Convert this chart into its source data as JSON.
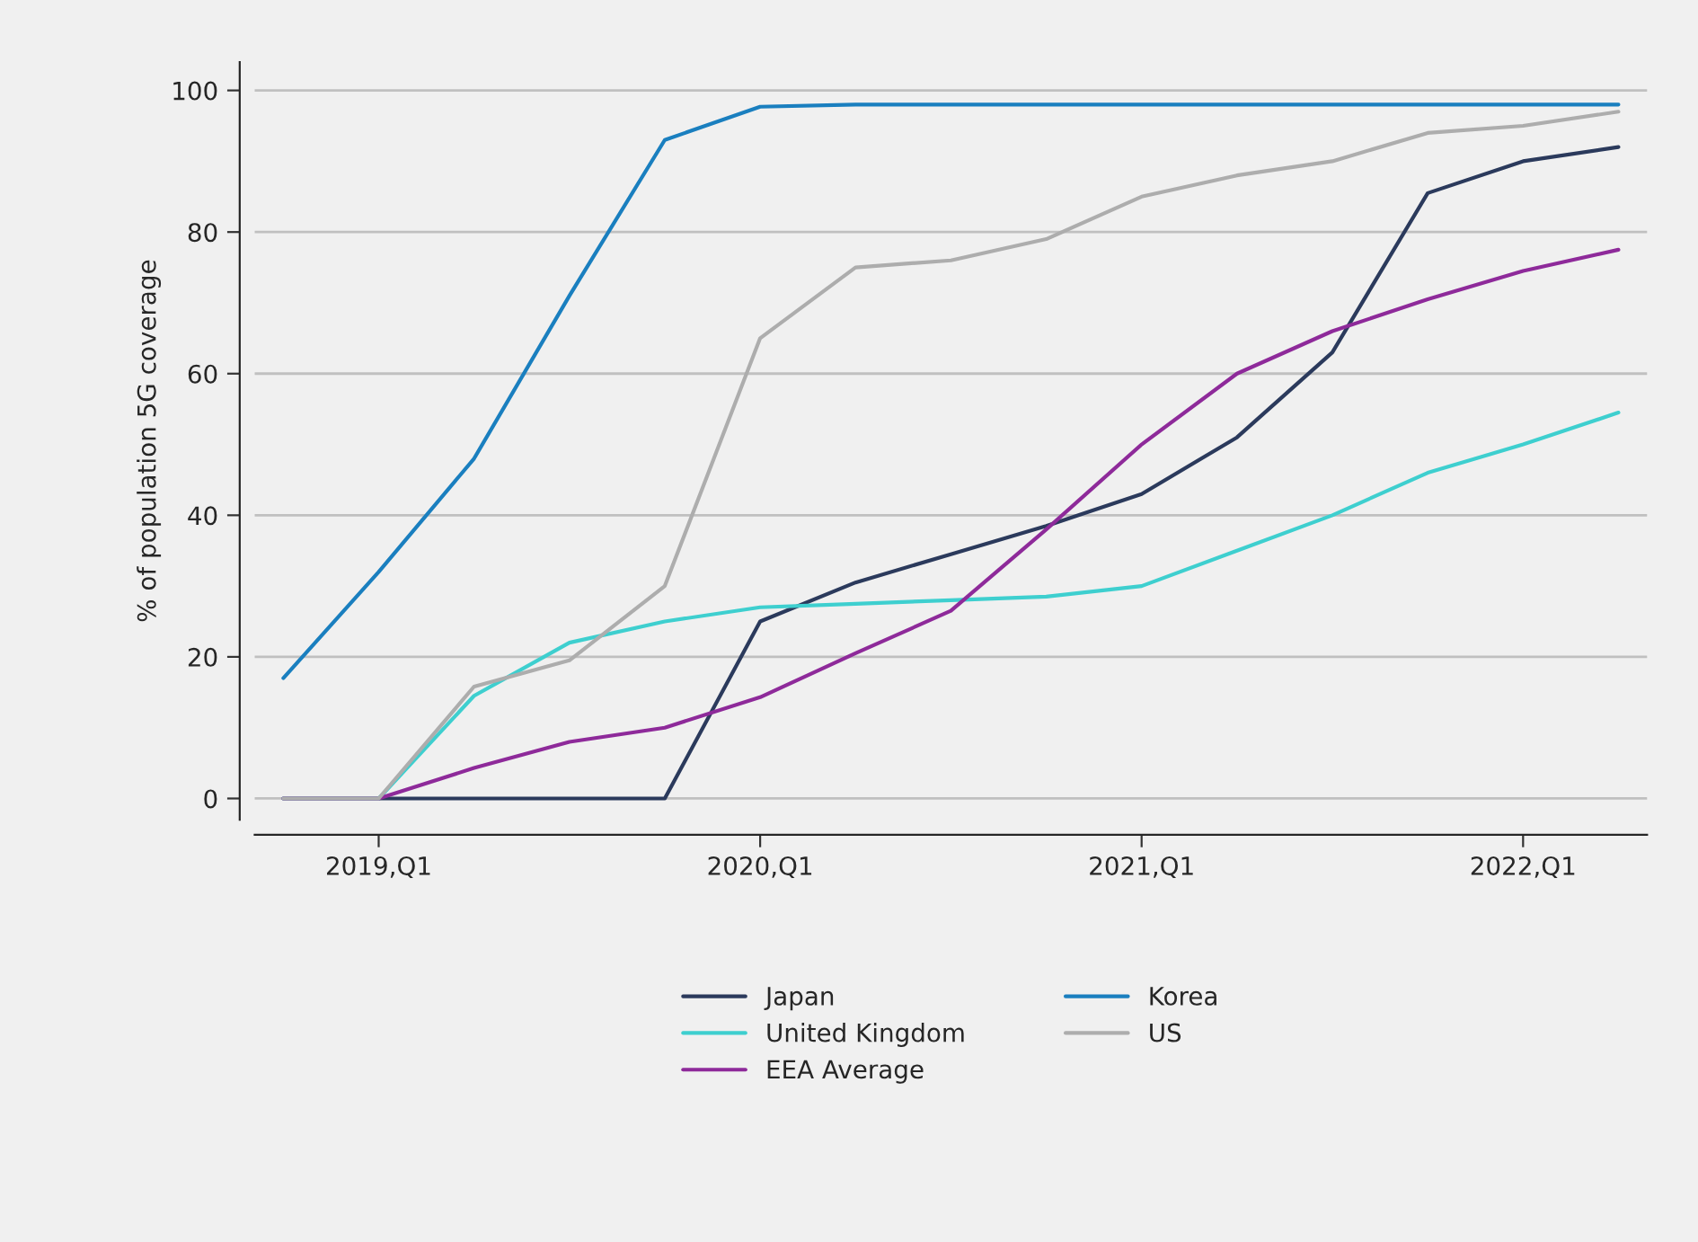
{
  "chart_data": {
    "type": "line",
    "ylabel": "% of population 5G coverage",
    "categories": [
      null,
      "2019,Q1",
      null,
      null,
      null,
      "2020,Q1",
      null,
      null,
      null,
      "2021,Q1",
      null,
      null,
      null,
      "2022,Q1",
      null
    ],
    "series": [
      {
        "name": "Japan",
        "color": "#2b3a5c",
        "values": [
          0,
          0,
          0,
          0,
          0,
          25,
          30.5,
          34.5,
          38.5,
          43,
          51,
          63,
          85.5,
          90,
          92
        ]
      },
      {
        "name": "United Kingdom",
        "color": "#3ecfcf",
        "values": [
          0,
          0,
          14.5,
          22,
          25,
          27,
          27.5,
          28,
          28.5,
          30,
          35,
          40,
          46,
          50,
          54.5
        ]
      },
      {
        "name": "EEA Average",
        "color": "#8e2a9a",
        "values": [
          0,
          0,
          4.3,
          8,
          10,
          14.3,
          20.5,
          26.5,
          38,
          50,
          60,
          66,
          70.5,
          74.5,
          77.5
        ]
      },
      {
        "name": "Korea",
        "color": "#1a7fbf",
        "values": [
          17,
          32,
          48,
          71,
          93,
          97.7,
          98,
          98,
          98,
          98,
          98,
          98,
          98,
          98,
          98
        ]
      },
      {
        "name": "US",
        "color": "#adadad",
        "values": [
          0,
          0,
          15.8,
          19.5,
          30,
          65,
          75,
          76,
          79,
          85,
          88,
          90,
          94,
          95,
          97
        ]
      }
    ],
    "ylim": [
      -3,
      104
    ],
    "yticks": [
      0,
      20,
      40,
      60,
      80,
      100
    ],
    "grid": "y",
    "legend": "bottom",
    "marker": "none",
    "line_style": "solid"
  }
}
